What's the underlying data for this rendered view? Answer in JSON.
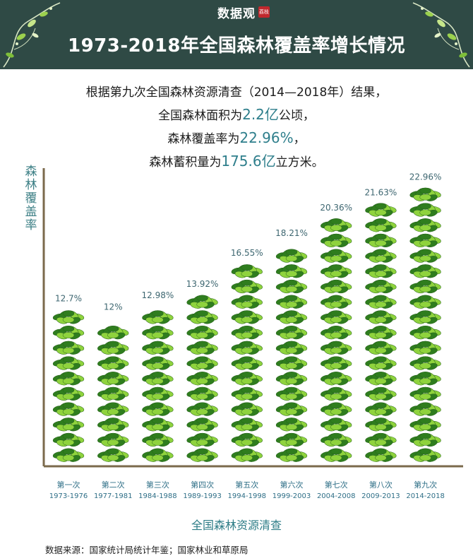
{
  "header": {
    "brand": "数据观",
    "brand_seal": "荔枝",
    "title": "1973-2018年全国森林覆盖率增长情况"
  },
  "summary": {
    "line1": "根据第九次全国森林资源清查（2014—2018年）结果，",
    "line2_pre": "全国森林面积为",
    "line2_hl": "2.2亿",
    "line2_post": "公顷，",
    "line3_pre": "森林覆盖率为",
    "line3_hl": "22.96%",
    "line3_post": "，",
    "line4_pre": "森林蓄积量为",
    "line4_hl": "175.6亿",
    "line4_post": "立方米。"
  },
  "colors": {
    "header_bg": "#2f4a45",
    "axis": "#7b6a4c",
    "value_label": "#3d6670",
    "category_label": "#2f6f87",
    "leaf_dark": "#2f7d1e",
    "leaf_light": "#8fd33d"
  },
  "chart_data": {
    "type": "bar",
    "title": "1973-2018年全国森林覆盖率增长情况",
    "ylabel": "森林覆盖率",
    "xlabel": "全国森林资源清查",
    "categories": [
      "第一次",
      "第二次",
      "第三次",
      "第四次",
      "第五次",
      "第六次",
      "第七次",
      "第八次",
      "第九次"
    ],
    "periods": [
      "1973-1976",
      "1977-1981",
      "1984-1988",
      "1989-1993",
      "1994-1998",
      "1999-2003",
      "2004-2008",
      "2009-2013",
      "2014-2018"
    ],
    "values": [
      12.7,
      12,
      12.98,
      13.92,
      16.55,
      18.21,
      20.36,
      21.63,
      22.96
    ],
    "value_labels": [
      "12.7%",
      "12%",
      "12.98%",
      "13.92%",
      "16.55%",
      "18.21%",
      "20.36%",
      "21.63%",
      "22.96%"
    ],
    "unit": "%",
    "ylim": [
      0,
      25
    ],
    "grid": false
  },
  "footer": {
    "source": "数据来源：国家统计局统计年鉴；国家林业和草原局"
  }
}
